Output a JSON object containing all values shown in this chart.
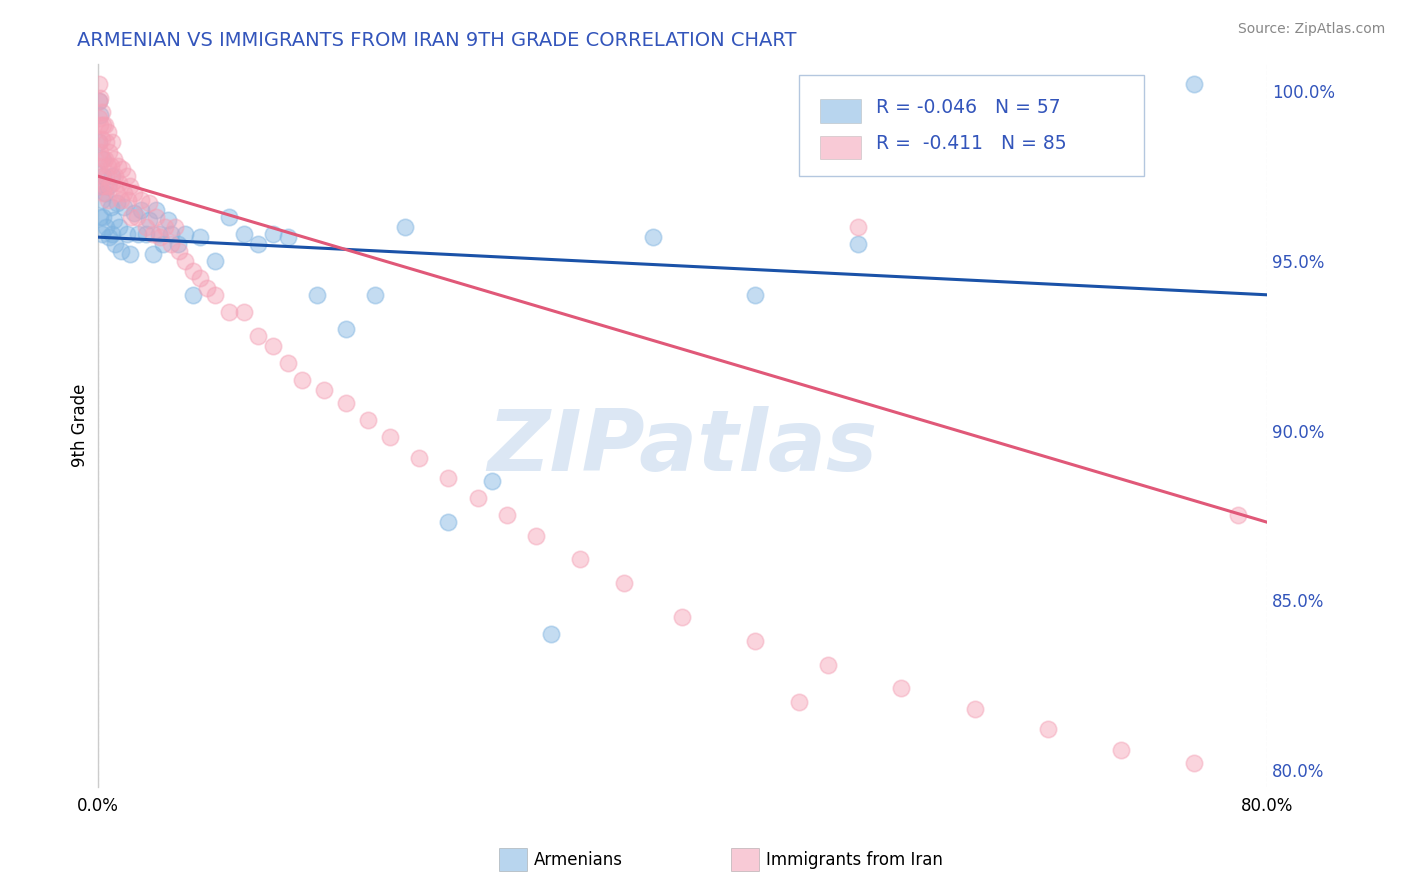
{
  "title": "ARMENIAN VS IMMIGRANTS FROM IRAN 9TH GRADE CORRELATION CHART",
  "source": "Source: ZipAtlas.com",
  "ylabel": "9th Grade",
  "xlabel_armenians": "Armenians",
  "xlabel_iran": "Immigrants from Iran",
  "xmin": 0.0,
  "xmax": 0.8,
  "ymin": 0.795,
  "ymax": 1.008,
  "yticks": [
    0.8,
    0.85,
    0.9,
    0.95,
    1.0
  ],
  "ytick_labels": [
    "80.0%",
    "85.0%",
    "90.0%",
    "95.0%",
    "100.0%"
  ],
  "xtick_labels": [
    "0.0%",
    "80.0%"
  ],
  "watermark_text": "ZIPatlas",
  "blue_color": "#7eb3e0",
  "pink_color": "#f4a0b5",
  "blue_line_color": "#1a52a8",
  "pink_line_color": "#e05878",
  "title_color": "#3355bb",
  "source_color": "#888888",
  "blue_R": "-0.046",
  "blue_N": "57",
  "pink_R": "-0.411",
  "pink_N": "85",
  "blue_line_x": [
    0.0,
    0.8
  ],
  "blue_line_y": [
    0.957,
    0.94
  ],
  "pink_line_x": [
    0.0,
    0.8
  ],
  "pink_line_y": [
    0.975,
    0.873
  ],
  "armenians_x": [
    0.001,
    0.001,
    0.001,
    0.002,
    0.002,
    0.003,
    0.003,
    0.003,
    0.004,
    0.004,
    0.005,
    0.006,
    0.007,
    0.008,
    0.009,
    0.01,
    0.01,
    0.011,
    0.012,
    0.013,
    0.015,
    0.016,
    0.018,
    0.02,
    0.022,
    0.025,
    0.028,
    0.03,
    0.033,
    0.035,
    0.038,
    0.04,
    0.042,
    0.045,
    0.048,
    0.05,
    0.055,
    0.06,
    0.065,
    0.07,
    0.08,
    0.09,
    0.1,
    0.11,
    0.12,
    0.13,
    0.15,
    0.17,
    0.19,
    0.21,
    0.24,
    0.27,
    0.31,
    0.38,
    0.45,
    0.52,
    0.75
  ],
  "armenians_y": [
    0.997,
    0.985,
    0.972,
    0.993,
    0.963,
    0.98,
    0.968,
    0.958,
    0.975,
    0.963,
    0.97,
    0.96,
    0.972,
    0.957,
    0.966,
    0.958,
    0.975,
    0.962,
    0.955,
    0.967,
    0.96,
    0.953,
    0.966,
    0.958,
    0.952,
    0.964,
    0.958,
    0.965,
    0.958,
    0.962,
    0.952,
    0.965,
    0.958,
    0.955,
    0.962,
    0.958,
    0.955,
    0.958,
    0.94,
    0.957,
    0.95,
    0.963,
    0.958,
    0.955,
    0.958,
    0.957,
    0.94,
    0.93,
    0.94,
    0.96,
    0.873,
    0.885,
    0.84,
    0.957,
    0.94,
    0.955,
    1.002
  ],
  "iran_x": [
    0.001,
    0.001,
    0.001,
    0.001,
    0.001,
    0.002,
    0.002,
    0.002,
    0.002,
    0.003,
    0.003,
    0.003,
    0.004,
    0.004,
    0.004,
    0.005,
    0.005,
    0.005,
    0.006,
    0.006,
    0.007,
    0.007,
    0.007,
    0.008,
    0.008,
    0.009,
    0.01,
    0.01,
    0.011,
    0.012,
    0.013,
    0.014,
    0.015,
    0.016,
    0.017,
    0.018,
    0.02,
    0.021,
    0.022,
    0.023,
    0.025,
    0.027,
    0.03,
    0.033,
    0.035,
    0.038,
    0.04,
    0.043,
    0.046,
    0.05,
    0.053,
    0.056,
    0.06,
    0.065,
    0.07,
    0.075,
    0.08,
    0.09,
    0.1,
    0.11,
    0.12,
    0.13,
    0.14,
    0.155,
    0.17,
    0.185,
    0.2,
    0.22,
    0.24,
    0.26,
    0.28,
    0.3,
    0.33,
    0.36,
    0.4,
    0.45,
    0.5,
    0.55,
    0.6,
    0.65,
    0.7,
    0.75,
    0.78,
    0.52,
    0.48
  ],
  "iran_y": [
    1.002,
    0.997,
    0.992,
    0.985,
    0.978,
    0.998,
    0.99,
    0.982,
    0.972,
    0.994,
    0.986,
    0.975,
    0.99,
    0.98,
    0.97,
    0.99,
    0.98,
    0.972,
    0.985,
    0.975,
    0.988,
    0.978,
    0.968,
    0.982,
    0.972,
    0.978,
    0.985,
    0.973,
    0.98,
    0.975,
    0.97,
    0.978,
    0.973,
    0.968,
    0.977,
    0.97,
    0.975,
    0.968,
    0.972,
    0.963,
    0.97,
    0.963,
    0.968,
    0.96,
    0.967,
    0.958,
    0.963,
    0.957,
    0.96,
    0.955,
    0.96,
    0.953,
    0.95,
    0.947,
    0.945,
    0.942,
    0.94,
    0.935,
    0.935,
    0.928,
    0.925,
    0.92,
    0.915,
    0.912,
    0.908,
    0.903,
    0.898,
    0.892,
    0.886,
    0.88,
    0.875,
    0.869,
    0.862,
    0.855,
    0.845,
    0.838,
    0.831,
    0.824,
    0.818,
    0.812,
    0.806,
    0.802,
    0.875,
    0.96,
    0.82
  ]
}
